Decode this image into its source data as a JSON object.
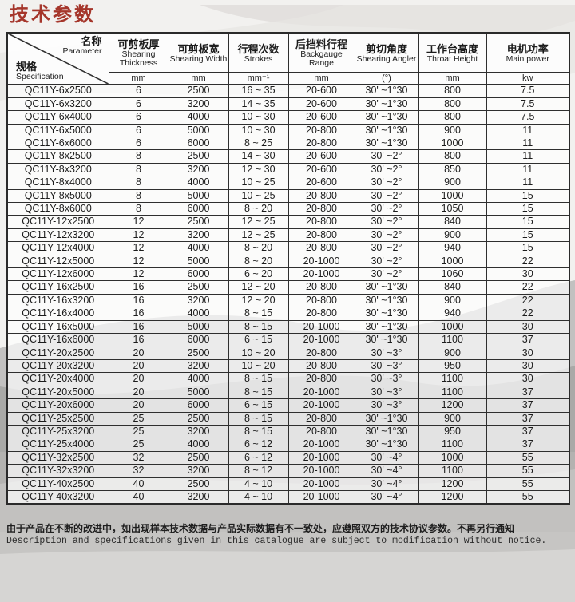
{
  "page": {
    "title": "技术参数",
    "footer_zh": "由于产品在不断的改进中，如出现样本技术数据与产品实际数据有不一致处，应遵照双方的技术协议参数。不再另行通知",
    "footer_en": "Description and specifications given in this catalogue are subject to modification without notice."
  },
  "colors": {
    "title_red": "#a5362b",
    "table_border": "#2f2f2f",
    "wave_light": "#d9d7d4",
    "wave_mid": "#b9b8b6",
    "wave_dark": "#a5a4a2"
  },
  "table": {
    "corner": {
      "top_zh": "名称",
      "top_en": "Parameter",
      "bottom_zh": "规格",
      "bottom_en": "Specification"
    },
    "columns": [
      {
        "zh": "可剪板厚",
        "en": "Shearing Thickness",
        "unit": "mm"
      },
      {
        "zh": "可剪板宽",
        "en": "Shearing Width",
        "unit": "mm"
      },
      {
        "zh": "行程次数",
        "en": "Strokes",
        "unit": "mm⁻¹"
      },
      {
        "zh": "后挡料行程",
        "en": "Backgauge Range",
        "unit": "mm"
      },
      {
        "zh": "剪切角度",
        "en": "Shearing Angler",
        "unit": "(°)"
      },
      {
        "zh": "工作台高度",
        "en": "Throat Height",
        "unit": "mm"
      },
      {
        "zh": "电机功率",
        "en": "Main power",
        "unit": "kw"
      }
    ],
    "rows": [
      [
        "QC11Y-6x2500",
        "6",
        "2500",
        "16 ~ 35",
        "20-600",
        "30' ~1°30",
        "800",
        "7.5"
      ],
      [
        "QC11Y-6x3200",
        "6",
        "3200",
        "14 ~ 35",
        "20-600",
        "30' ~1°30",
        "800",
        "7.5"
      ],
      [
        "QC11Y-6x4000",
        "6",
        "4000",
        "10 ~ 30",
        "20-600",
        "30' ~1°30",
        "800",
        "7.5"
      ],
      [
        "QC11Y-6x5000",
        "6",
        "5000",
        "10 ~ 30",
        "20-800",
        "30' ~1°30",
        "900",
        "11"
      ],
      [
        "QC11Y-6x6000",
        "6",
        "6000",
        "8 ~ 25",
        "20-800",
        "30' ~1°30",
        "1000",
        "11"
      ],
      [
        "QC11Y-8x2500",
        "8",
        "2500",
        "14 ~ 30",
        "20-600",
        "30' ~2°",
        "800",
        "11"
      ],
      [
        "QC11Y-8x3200",
        "8",
        "3200",
        "12 ~ 30",
        "20-600",
        "30' ~2°",
        "850",
        "11"
      ],
      [
        "QC11Y-8x4000",
        "8",
        "4000",
        "10 ~ 25",
        "20-600",
        "30' ~2°",
        "900",
        "11"
      ],
      [
        "QC11Y-8x5000",
        "8",
        "5000",
        "10 ~ 25",
        "20-800",
        "30' ~2°",
        "1000",
        "15"
      ],
      [
        "QC11Y-8x6000",
        "8",
        "6000",
        "8 ~ 20",
        "20-800",
        "30' ~2°",
        "1050",
        "15"
      ],
      [
        "QC11Y-12x2500",
        "12",
        "2500",
        "12 ~ 25",
        "20-800",
        "30' ~2°",
        "840",
        "15"
      ],
      [
        "QC11Y-12x3200",
        "12",
        "3200",
        "12 ~ 25",
        "20-800",
        "30' ~2°",
        "900",
        "15"
      ],
      [
        "QC11Y-12x4000",
        "12",
        "4000",
        "8 ~ 20",
        "20-800",
        "30' ~2°",
        "940",
        "15"
      ],
      [
        "QC11Y-12x5000",
        "12",
        "5000",
        "8 ~ 20",
        "20-1000",
        "30' ~2°",
        "1000",
        "22"
      ],
      [
        "QC11Y-12x6000",
        "12",
        "6000",
        "6 ~ 20",
        "20-1000",
        "30' ~2°",
        "1060",
        "30"
      ],
      [
        "QC11Y-16x2500",
        "16",
        "2500",
        "12 ~ 20",
        "20-800",
        "30' ~1°30",
        "840",
        "22"
      ],
      [
        "QC11Y-16x3200",
        "16",
        "3200",
        "12 ~ 20",
        "20-800",
        "30' ~1°30",
        "900",
        "22"
      ],
      [
        "QC11Y-16x4000",
        "16",
        "4000",
        "8 ~ 15",
        "20-800",
        "30' ~1°30",
        "940",
        "22"
      ],
      [
        "QC11Y-16x5000",
        "16",
        "5000",
        "8 ~ 15",
        "20-1000",
        "30' ~1°30",
        "1000",
        "30"
      ],
      [
        "QC11Y-16x6000",
        "16",
        "6000",
        "6 ~ 15",
        "20-1000",
        "30' ~1°30",
        "1100",
        "37"
      ],
      [
        "QC11Y-20x2500",
        "20",
        "2500",
        "10 ~ 20",
        "20-800",
        "30' ~3°",
        "900",
        "30"
      ],
      [
        "QC11Y-20x3200",
        "20",
        "3200",
        "10 ~ 20",
        "20-800",
        "30' ~3°",
        "950",
        "30"
      ],
      [
        "QC11Y-20x4000",
        "20",
        "4000",
        "8 ~ 15",
        "20-800",
        "30' ~3°",
        "1100",
        "30"
      ],
      [
        "QC11Y-20x5000",
        "20",
        "5000",
        "8 ~ 15",
        "20-1000",
        "30' ~3°",
        "1100",
        "37"
      ],
      [
        "QC11Y-20x6000",
        "20",
        "6000",
        "6 ~ 15",
        "20-1000",
        "30' ~3°",
        "1200",
        "37"
      ],
      [
        "QC11Y-25x2500",
        "25",
        "2500",
        "8 ~ 15",
        "20-800",
        "30' ~1°30",
        "900",
        "37"
      ],
      [
        "QC11Y-25x3200",
        "25",
        "3200",
        "8 ~ 15",
        "20-800",
        "30' ~1°30",
        "950",
        "37"
      ],
      [
        "QC11Y-25x4000",
        "25",
        "4000",
        "6 ~ 12",
        "20-1000",
        "30' ~1°30",
        "1100",
        "37"
      ],
      [
        "QC11Y-32x2500",
        "32",
        "2500",
        "6 ~ 12",
        "20-1000",
        "30' ~4°",
        "1000",
        "55"
      ],
      [
        "QC11Y-32x3200",
        "32",
        "3200",
        "8 ~ 12",
        "20-1000",
        "30' ~4°",
        "1100",
        "55"
      ],
      [
        "QC11Y-40x2500",
        "40",
        "2500",
        "4 ~ 10",
        "20-1000",
        "30' ~4°",
        "1200",
        "55"
      ],
      [
        "QC11Y-40x3200",
        "40",
        "3200",
        "4 ~ 10",
        "20-1000",
        "30' ~4°",
        "1200",
        "55"
      ]
    ]
  }
}
